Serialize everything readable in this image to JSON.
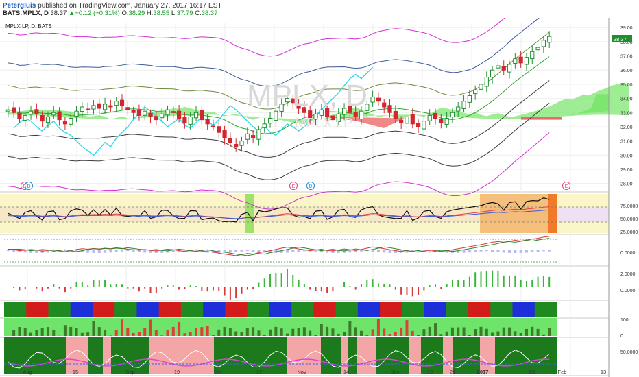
{
  "header": {
    "user": "Petergluis",
    "published": "published on TradingView.com, January 27, 2017 16:17 EST",
    "symbol": "BATS:MPLX, D",
    "last": "38.37",
    "change": "▲+0.12 (+0.31%)",
    "open_label": "O:",
    "open": "38.29",
    "high_label": "H:",
    "high": "38.55",
    "low_label": "L:",
    "low": "37.79",
    "close_label": "C:",
    "close": "38.37"
  },
  "chart_data": {
    "type": "candlestick",
    "legend": "MPLX LP, D, BATS",
    "watermark": "MPLX, D",
    "watermark_sub": "MPLX LP",
    "last_price_tag": "38.37",
    "price_axis": {
      "ticks": [
        "39.00",
        "38.00",
        "37.00",
        "36.00",
        "35.00",
        "34.00",
        "33.00",
        "32.00",
        "31.00",
        "30.00",
        "29.00",
        "28.00"
      ],
      "ylim": [
        27.5,
        39.3
      ]
    },
    "x_axis": {
      "labels": [
        "Aug",
        "15",
        "Sep",
        "19",
        "Oct",
        "17",
        "Nov",
        "14",
        "Dec",
        "12",
        "21",
        "2017",
        "23",
        "Feb",
        "13"
      ]
    },
    "event_markers": [
      "E",
      "D",
      "E",
      "D",
      "E"
    ],
    "closes": [
      33.2,
      33.0,
      32.6,
      32.8,
      33.1,
      32.9,
      32.4,
      32.7,
      33.0,
      32.5,
      32.2,
      32.6,
      33.1,
      33.4,
      33.2,
      33.5,
      33.3,
      33.6,
      33.4,
      33.8,
      33.5,
      33.2,
      33.0,
      32.8,
      33.1,
      32.7,
      32.5,
      32.9,
      33.2,
      33.0,
      32.6,
      32.3,
      32.7,
      33.0,
      32.5,
      32.2,
      32.0,
      31.6,
      31.2,
      30.9,
      30.6,
      31.0,
      31.5,
      31.2,
      31.8,
      32.2,
      32.6,
      33.1,
      33.6,
      34.0,
      33.7,
      33.3,
      33.0,
      32.6,
      32.9,
      33.2,
      32.7,
      32.5,
      32.9,
      33.3,
      33.0,
      32.7,
      33.1,
      33.6,
      34.1,
      33.8,
      33.4,
      33.0,
      32.6,
      32.3,
      32.7,
      32.2,
      32.0,
      32.4,
      32.8,
      32.6,
      32.3,
      32.6,
      33.0,
      33.4,
      33.8,
      34.2,
      34.6,
      35.0,
      35.5,
      36.0,
      36.3,
      36.0,
      36.4,
      36.8,
      36.5,
      36.9,
      37.3,
      37.6,
      38.1,
      38.37
    ],
    "panels": {
      "rsi": {
        "ticks": [
          "75.0000",
          "50.0000",
          "25.0000"
        ]
      },
      "macd": {
        "ticks": [
          "0.0000"
        ]
      },
      "momentum": {
        "ticks": [
          "2.0000",
          "0.0000"
        ]
      },
      "trend": {
        "ticks": []
      },
      "strength": {
        "ticks": [
          "100",
          "0"
        ]
      },
      "oscillator": {
        "ticks": [
          "50.0000"
        ]
      }
    },
    "colors": {
      "up": "#1e8f2e",
      "down": "#d2272e",
      "cloud_up": "#7ee66f",
      "cloud_down": "#ee6a6a",
      "bb_outer": "#d22fd2",
      "bb_mid": "#3e3e3e",
      "cyan": "#33d6e6"
    }
  }
}
